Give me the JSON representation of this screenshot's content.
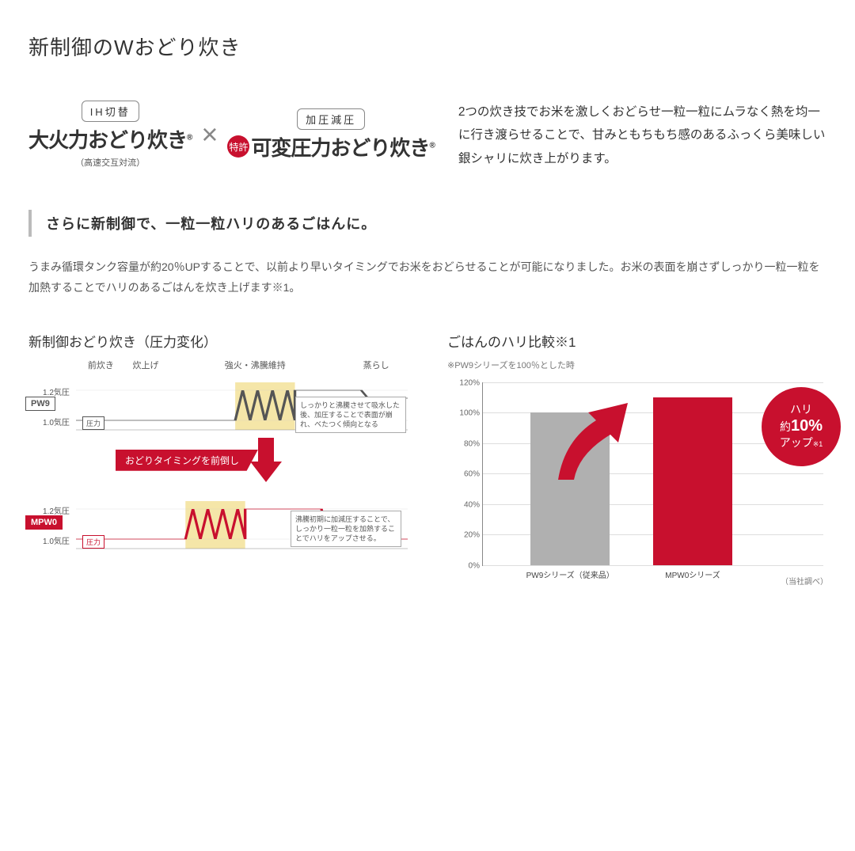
{
  "title": "新制御のWおどり炊き",
  "tech1": {
    "pill": "IH切替",
    "brush": "大火力おどり炊き",
    "sub": "（高速交互対流）"
  },
  "tech2": {
    "pill": "加圧減圧",
    "patent": "特許",
    "brush": "可変圧力おどり炊き"
  },
  "top_desc": "2つの炊き技でお米を激しくおどらせ一粒一粒にムラなく熱を均一に行き渡らせることで、甘みともちもち感のあるふっくら美味しい銀シャリに炊き上がります。",
  "sub_head": "さらに新制御で、一粒一粒ハリのあるごはんに。",
  "body_text": "うまみ循環タンク容量が約20％UPすることで、以前より早いタイミングでお米をおどらせることが可能になりました。お米の表面を崩さずしっかり一粒一粒を加熱することでハリのあるごはんを炊き上げます※1。",
  "pressure_chart": {
    "title": "新制御おどり炊き（圧力変化）",
    "phases": [
      "前炊き",
      "炊上げ",
      "強火・沸騰維持",
      "蒸らし"
    ],
    "phase_widths": [
      15,
      12,
      54,
      19
    ],
    "y_ticks": [
      "1.2気圧",
      "1.0気圧"
    ],
    "pressure_label": "圧力",
    "pw9": {
      "tag": "PW9",
      "color": "#555555",
      "annotation": "しっかりと沸騰させて吸水した後、加圧することで表面が崩れ、べたつく傾向となる",
      "highlight_x": [
        48,
        66
      ]
    },
    "mpw0": {
      "tag": "MPW0",
      "color": "#c8102e",
      "annotation": "沸騰初期に加減圧することで、しっかり一粒一粒を加熱することでハリをアップさせる。",
      "highlight_x": [
        33,
        51
      ]
    },
    "shift_banner": "おどりタイミングを前倒し",
    "highlight_fill": "#f5e6a8"
  },
  "bar_chart": {
    "title": "ごはんのハリ比較※1",
    "note": "※PW9シリーズを100％とした時",
    "ylim": [
      0,
      120
    ],
    "ytick_step": 20,
    "grid_color": "#dddddd",
    "bars": [
      {
        "label": "PW9シリーズ（従来品）",
        "value": 100,
        "color": "#b0b0b0",
        "x_pct": 14
      },
      {
        "label": "MPW0シリーズ",
        "value": 110,
        "color": "#c8102e",
        "x_pct": 50
      }
    ],
    "badge": {
      "line1": "ハリ",
      "line2_pre": "約",
      "line2_big": "10%",
      "line3": "アップ",
      "note": "※1"
    },
    "arrow_color": "#c8102e",
    "source": "（当社調べ）"
  }
}
